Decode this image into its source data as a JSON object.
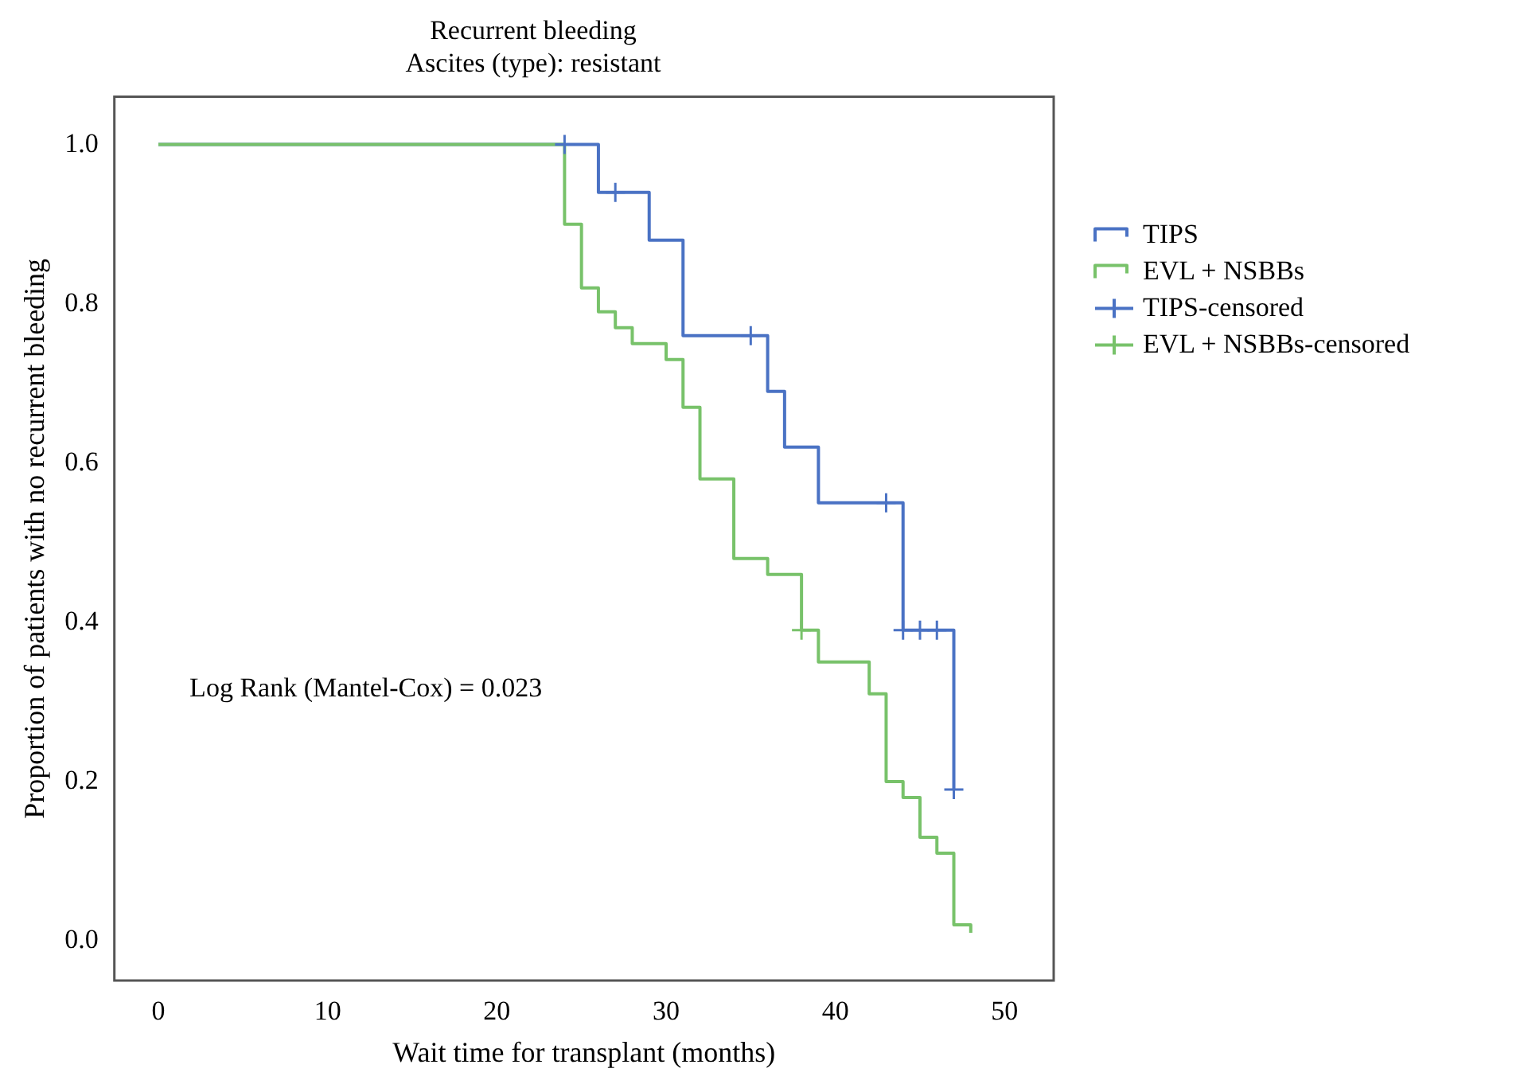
{
  "chart_data": {
    "type": "step",
    "title": "Recurrent bleeding",
    "subtitle": "Ascites (type): resistant",
    "xlabel": "Wait time for transplant (months)",
    "ylabel": "Proportion of patients with no recurrent bleeding",
    "xlim": [
      -2.6,
      52.9
    ],
    "xticks": [
      0,
      10,
      20,
      30,
      40,
      50
    ],
    "ylim": [
      -0.05,
      1.06
    ],
    "yticks": [
      {
        "value": 0,
        "label": "0.0"
      },
      0.2,
      0.4,
      0.6,
      0.8,
      {
        "value": 1,
        "label": "1.0"
      }
    ],
    "grid": false,
    "legend": "right",
    "marker": "none",
    "line_style": "solid",
    "annotations": [
      "Log Rank (Mantel-Cox) = 0.023"
    ],
    "series": [
      {
        "name": "TIPS",
        "color": "#4a72c4",
        "x": [
          0,
          26,
          29,
          31,
          36,
          37,
          39,
          44,
          47
        ],
        "values": [
          1,
          0.94,
          0.88,
          0.76,
          0.69,
          0.62,
          0.55,
          0.39,
          0.19
        ]
      },
      {
        "name": "EVL + NSBBs",
        "color": "#78c26a",
        "x": [
          0,
          24,
          25,
          26,
          27,
          28,
          30,
          31,
          32,
          34,
          36,
          38,
          39,
          42,
          43,
          44,
          45,
          46,
          47,
          48
        ],
        "values": [
          1,
          0.9,
          0.82,
          0.79,
          0.77,
          0.75,
          0.73,
          0.67,
          0.58,
          0.48,
          0.46,
          0.39,
          0.35,
          0.31,
          0.2,
          0.18,
          0.13,
          0.11,
          0.02,
          0.01
        ]
      },
      {
        "name": "TIPS-censored",
        "type": "scatter",
        "marker": "cross",
        "color": "#4a72c4",
        "x": [
          24,
          27,
          35,
          43,
          44,
          45,
          46,
          47
        ],
        "values": [
          1,
          0.94,
          0.76,
          0.55,
          0.39,
          0.39,
          0.39,
          0.19
        ]
      },
      {
        "name": "EVL + NSBBs-censored",
        "type": "scatter",
        "marker": "cross",
        "color": "#78c26a",
        "x": [
          38
        ],
        "values": [
          0.39
        ]
      }
    ]
  }
}
